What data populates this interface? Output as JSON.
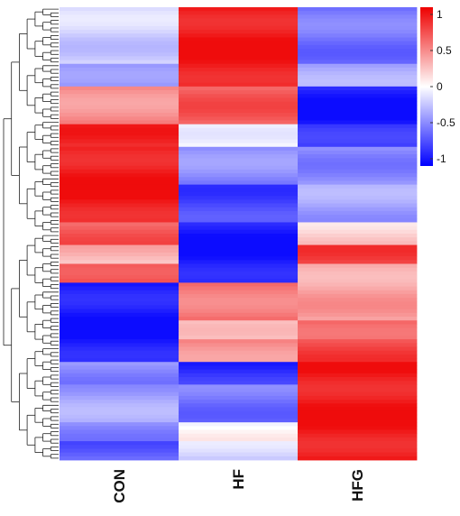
{
  "chart_data": {
    "type": "heatmap",
    "columns": [
      "CON",
      "HF",
      "HFG"
    ],
    "row_count": 120,
    "row_groups": [
      {
        "rows": 15,
        "values": [
          -0.2,
          1.0,
          -0.6
        ]
      },
      {
        "rows": 6,
        "values": [
          -0.5,
          1.0,
          -0.4
        ]
      },
      {
        "rows": 10,
        "values": [
          0.5,
          0.7,
          -1.0
        ]
      },
      {
        "rows": 6,
        "values": [
          0.9,
          0.0,
          -0.9
        ]
      },
      {
        "rows": 10,
        "values": [
          1.0,
          -0.5,
          -0.5
        ]
      },
      {
        "rows": 10,
        "values": [
          1.0,
          -0.8,
          -0.4
        ]
      },
      {
        "rows": 6,
        "values": [
          0.7,
          -1.0,
          0.2
        ]
      },
      {
        "rows": 5,
        "values": [
          0.3,
          -1.0,
          0.8
        ]
      },
      {
        "rows": 5,
        "values": [
          0.8,
          -1.0,
          0.4
        ]
      },
      {
        "rows": 10,
        "values": [
          -1.0,
          0.6,
          0.4
        ]
      },
      {
        "rows": 5,
        "values": [
          -1.0,
          0.2,
          0.7
        ]
      },
      {
        "rows": 6,
        "values": [
          -1.0,
          0.5,
          0.8
        ]
      },
      {
        "rows": 6,
        "values": [
          -0.5,
          -0.9,
          1.0
        ]
      },
      {
        "rows": 10,
        "values": [
          -0.4,
          -0.6,
          1.0
        ]
      },
      {
        "rows": 5,
        "values": [
          -0.5,
          0.0,
          1.0
        ]
      },
      {
        "rows": 5,
        "values": [
          -0.7,
          -0.2,
          1.0
        ]
      }
    ],
    "colorbar": {
      "ticks": [
        1,
        0.5,
        0,
        -0.5,
        -1
      ],
      "tick_labels": [
        "1",
        "0.5",
        "0",
        "-0.5",
        "-1"
      ],
      "range": [
        -1.1,
        1.1
      ],
      "low_color": "#0000ff",
      "mid_color": "#ffffff",
      "high_color": "#ee0000"
    },
    "dendrogram": "rows",
    "title": "",
    "xlabel": "",
    "ylabel": ""
  }
}
